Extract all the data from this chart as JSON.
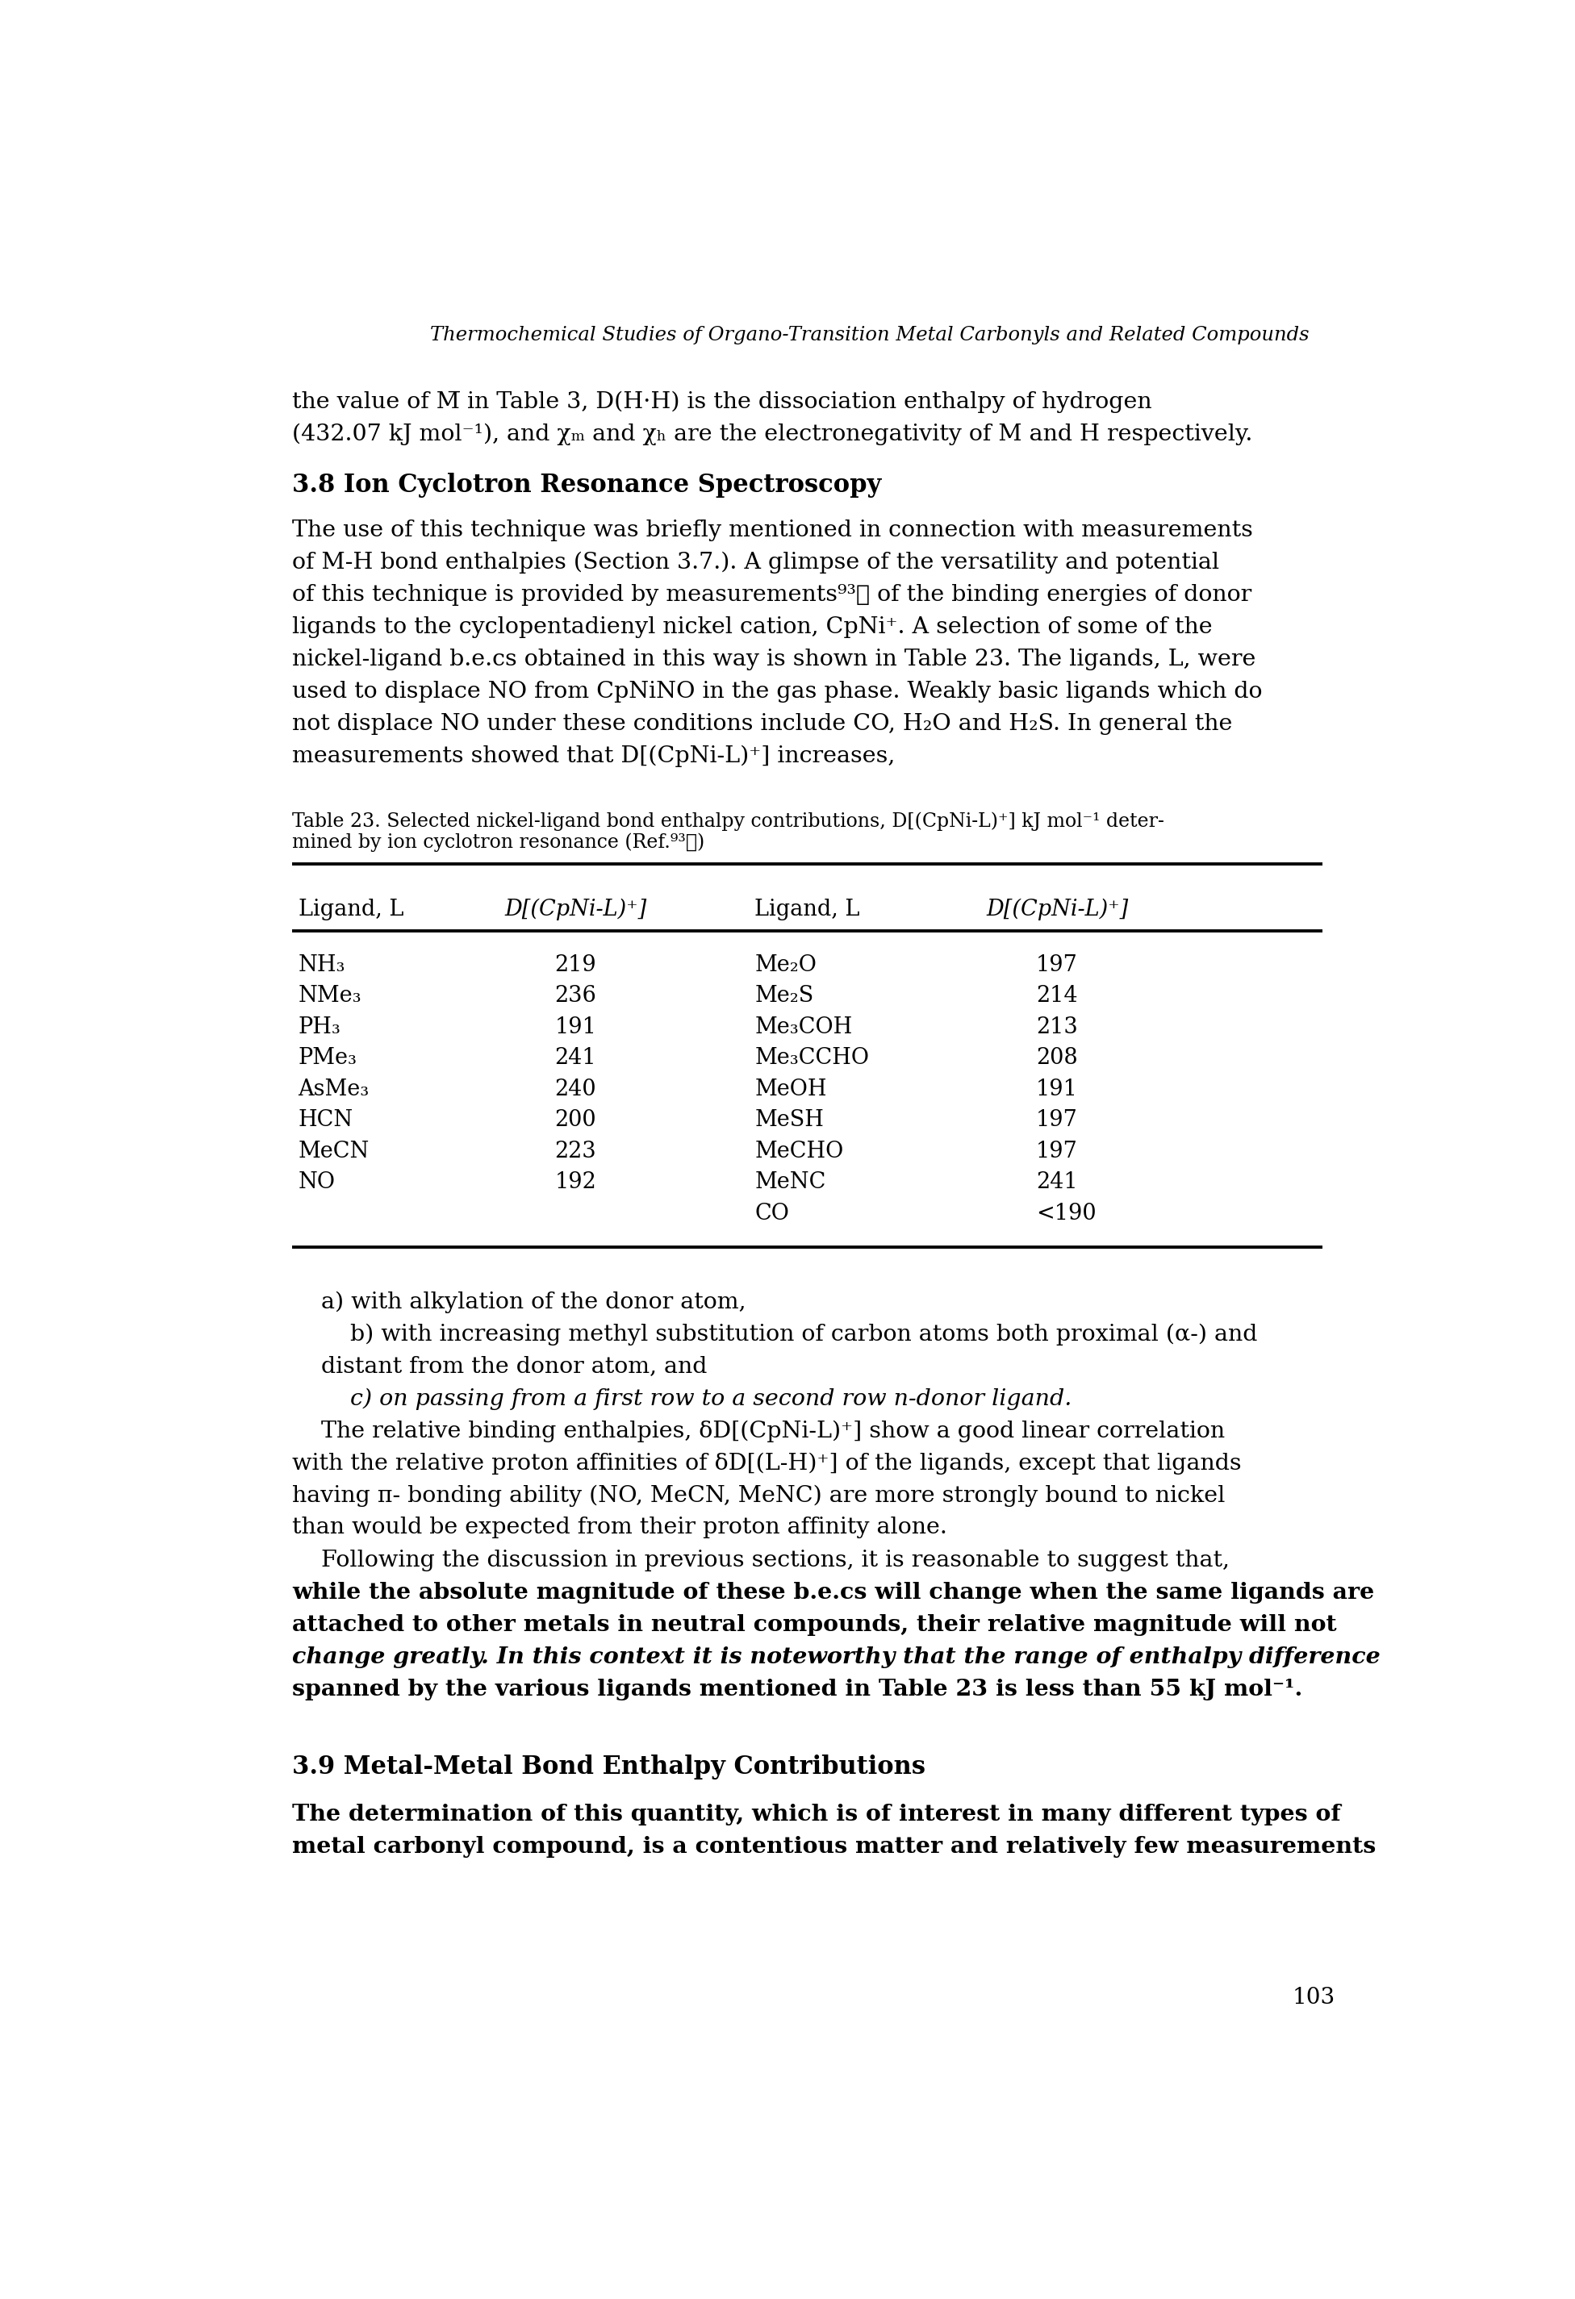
{
  "header": "Thermochemical Studies of Organo-Transition Metal Carbonyls and Related Compounds",
  "page_number": "103",
  "section_title_1": "3.8 Ion Cyclotron Resonance Spectroscopy",
  "section_title_2": "3.9 Metal-Metal Bond Enthalpy Contributions",
  "background_color": "#ffffff",
  "text_color": "#000000",
  "para1_line1": "the value of M̅ in Table 3, D(H·H) is the dissociation enthalpy of hydrogen",
  "para1_line2": "(432.07 kJ mol⁻¹), and χₘ and χₕ are the electronegativity of M and H respectively.",
  "para2_lines": [
    "The use of this technique was briefly mentioned in connection with measurements",
    "of M-H bond enthalpies (Section 3.7.). A glimpse of the versatility and potential",
    "of this technique is provided by measurements⁹³⧩ of the binding energies of donor",
    "ligands to the cyclopentadienyl nickel cation, CpNi⁺. A selection of some of the",
    "nickel-ligand b.e.cs obtained in this way is shown in Table 23. The ligands, L, were",
    "used to displace NO from CpNiNO in the gas phase. Weakly basic ligands which do",
    "not displace NO under these conditions include CO, H₂O and H₂S. In general the",
    "measurements showed that D[(CpNi-L)⁺] increases,"
  ],
  "table_cap_line1": "Table 23. Selected nickel-ligand bond enthalpy contributions, D[(CpNi-L)⁺] kJ mol⁻¹ deter-",
  "table_cap_line2": "mined by ion cyclotron resonance (Ref.⁹³⧩)",
  "table_headers_left": [
    "Ligand, L",
    "D[(CpNi-L)⁺]"
  ],
  "table_headers_right": [
    "Ligand, L",
    "D[(CpNi-L)⁺]"
  ],
  "table_data_left": [
    [
      "NH₃",
      "219"
    ],
    [
      "NMe₃",
      "236"
    ],
    [
      "PH₃",
      "191"
    ],
    [
      "PMe₃",
      "241"
    ],
    [
      "AsMe₃",
      "240"
    ],
    [
      "HCN",
      "200"
    ],
    [
      "MeCN",
      "223"
    ],
    [
      "NO",
      "192"
    ]
  ],
  "table_data_right": [
    [
      "Me₂O",
      "197"
    ],
    [
      "Me₂S",
      "214"
    ],
    [
      "Me₃COH",
      "213"
    ],
    [
      "Me₃CCHO",
      "208"
    ],
    [
      "MeOH",
      "191"
    ],
    [
      "MeSH",
      "197"
    ],
    [
      "MeCHO",
      "197"
    ],
    [
      "MeNC",
      "241"
    ],
    [
      "CO",
      "<190"
    ]
  ],
  "after_table_lines": [
    [
      "    a) with alkylation of the donor atom,",
      "normal",
      "normal"
    ],
    [
      "        b) with increasing methyl substitution of carbon atoms both proximal (α-) and",
      "normal",
      "normal"
    ],
    [
      "    distant from the donor atom, and",
      "normal",
      "normal"
    ],
    [
      "        c) on passing from a first row to a second row n-donor ligand.",
      "normal",
      "italic"
    ],
    [
      "    The relative binding enthalpies, δD[(CpNi-L)⁺] show a good linear correlation",
      "normal",
      "normal"
    ],
    [
      "with the relative proton affinities of δD[(L-H)⁺] of the ligands, except that ligands",
      "normal",
      "normal"
    ],
    [
      "having π- bonding ability (NO, MeCN, MeNC) are more strongly bound to nickel",
      "normal",
      "normal"
    ],
    [
      "than would be expected from their proton affinity alone.",
      "normal",
      "normal"
    ],
    [
      "    Following the discussion in previous sections, it is reasonable to suggest that,",
      "normal",
      "normal"
    ],
    [
      "while the absolute magnitude of these b.e.cs will change when the same ligands are",
      "bold",
      "normal"
    ],
    [
      "attached to other metals in neutral compounds, their relative magnitude will not",
      "bold",
      "normal"
    ],
    [
      "change greatly. In this context it is noteworthy that the range of enthalpy difference",
      "bold",
      "italic"
    ],
    [
      "spanned by the various ligands mentioned in Table 23 is less than 55 kJ mol⁻¹.",
      "bold",
      "normal"
    ]
  ],
  "final_lines": [
    "The determination of this quantity, which is of interest in many different types of",
    "metal carbonyl compound, is a contentious matter and relatively few measurements"
  ]
}
